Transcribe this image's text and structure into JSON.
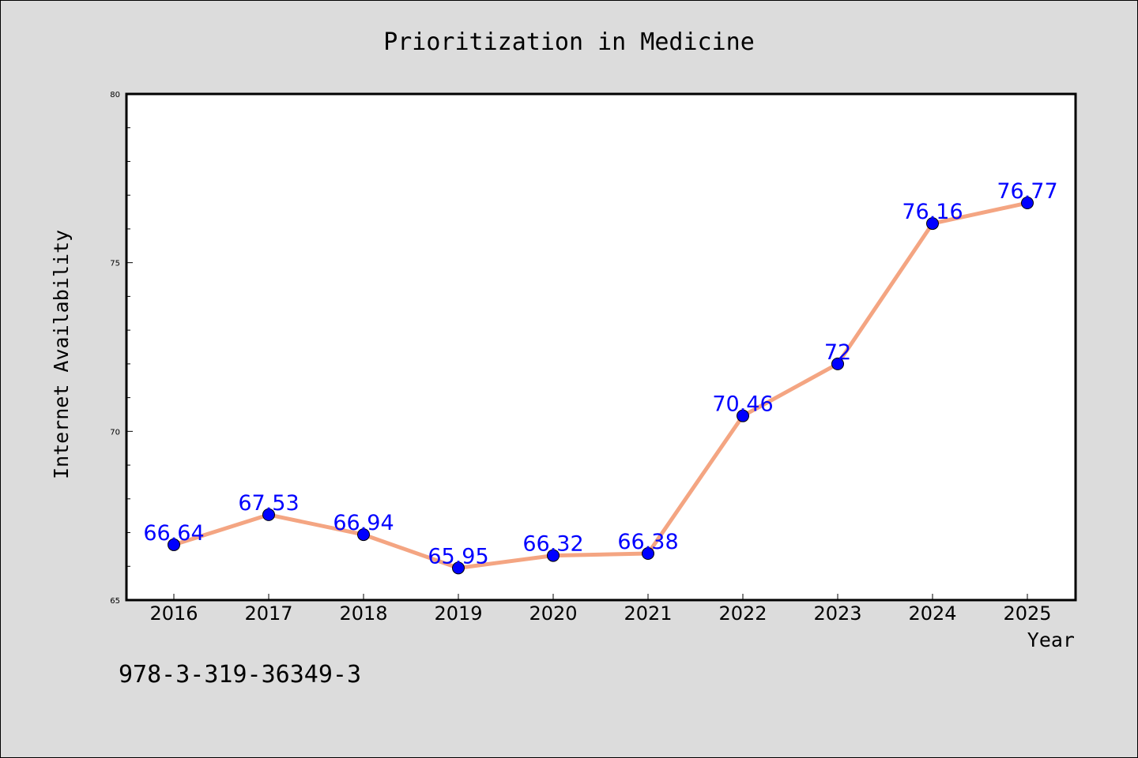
{
  "chart_data": {
    "type": "line",
    "title": "Prioritization in Medicine",
    "xlabel": "Year",
    "ylabel": "Internet Availability",
    "categories": [
      "2016",
      "2017",
      "2018",
      "2019",
      "2020",
      "2021",
      "2022",
      "2023",
      "2024",
      "2025"
    ],
    "series": [
      {
        "values": [
          66.64,
          67.53,
          66.94,
          65.95,
          66.32,
          66.38,
          70.46,
          72,
          76.16,
          76.77
        ],
        "labels": [
          "66.64",
          "67.53",
          "66.94",
          "65.95",
          "66.32",
          "66.38",
          "70.46",
          "72",
          "76.16",
          "76.77"
        ]
      }
    ],
    "ylim": [
      65,
      80
    ],
    "yticks": [
      "65",
      "70",
      "75",
      "80"
    ],
    "grid": false,
    "line_color": "#f4a582",
    "marker_color": "#0000ff",
    "label_color": "#0000ff",
    "background_color": "#dcdcdc",
    "plot_background": "#ffffff"
  },
  "footnote": "978-3-319-36349-3"
}
